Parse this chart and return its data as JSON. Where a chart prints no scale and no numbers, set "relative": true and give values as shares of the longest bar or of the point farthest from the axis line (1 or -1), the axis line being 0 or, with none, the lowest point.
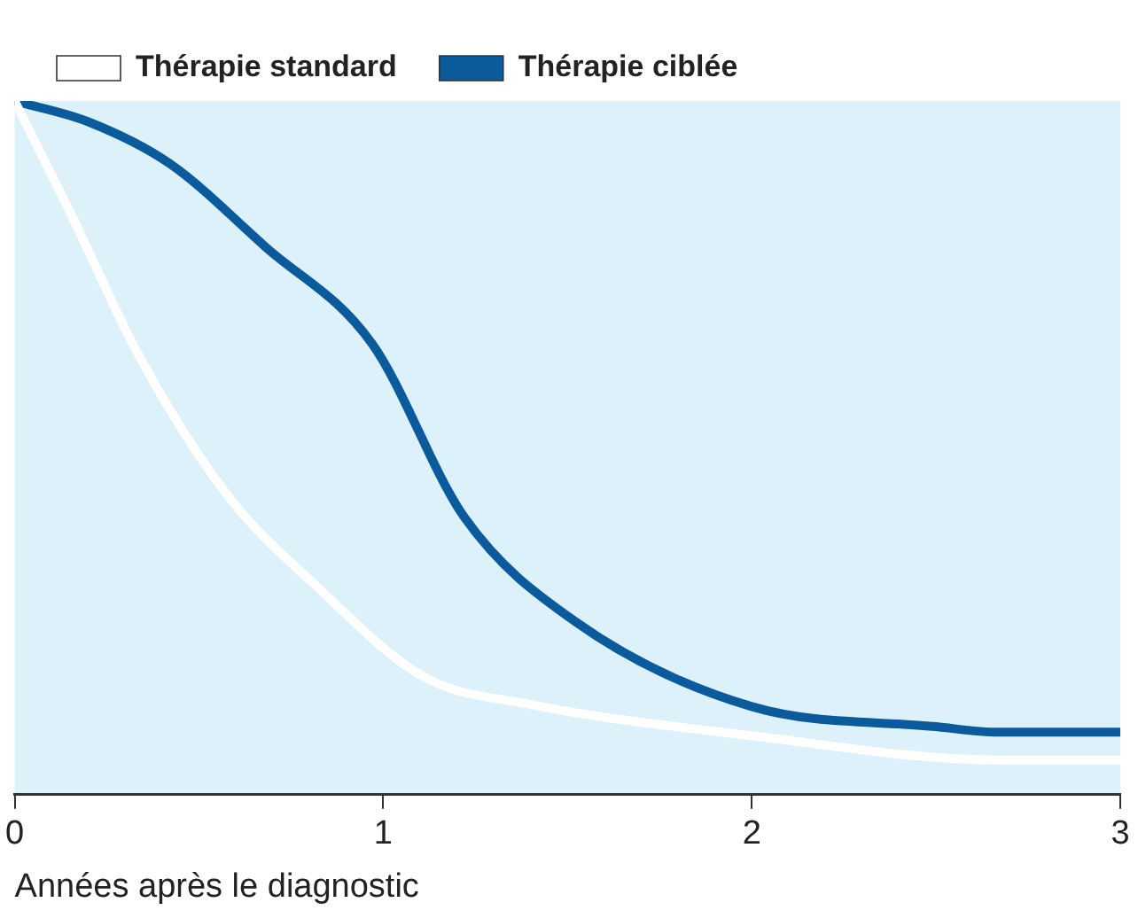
{
  "chart_data": {
    "type": "line",
    "relative": true,
    "xlabel": "Années après le diagnostic",
    "xlim": [
      0,
      3
    ],
    "xticks": [
      0,
      1,
      2,
      3
    ],
    "legend": "top left",
    "marker": "none",
    "line_style": "solid",
    "grid": false,
    "series": [
      {
        "name": "Thérapie standard",
        "color": "#ffffff",
        "x": [
          0,
          0.15,
          0.34,
          0.58,
          0.82,
          1.11,
          1.4,
          2.0,
          2.67,
          3.0
        ],
        "values": [
          1,
          0.84,
          0.63,
          0.43,
          0.3,
          0.17,
          0.13,
          0.085,
          0.05,
          0.05
        ]
      },
      {
        "name": "Thérapie ciblée",
        "color": "#0a5a9c",
        "x": [
          0,
          0.2,
          0.42,
          0.68,
          0.97,
          1.22,
          1.52,
          2.0,
          2.5,
          2.67,
          3.0
        ],
        "values": [
          1,
          0.97,
          0.91,
          0.79,
          0.65,
          0.4,
          0.25,
          0.127,
          0.098,
          0.09,
          0.09
        ]
      }
    ]
  }
}
